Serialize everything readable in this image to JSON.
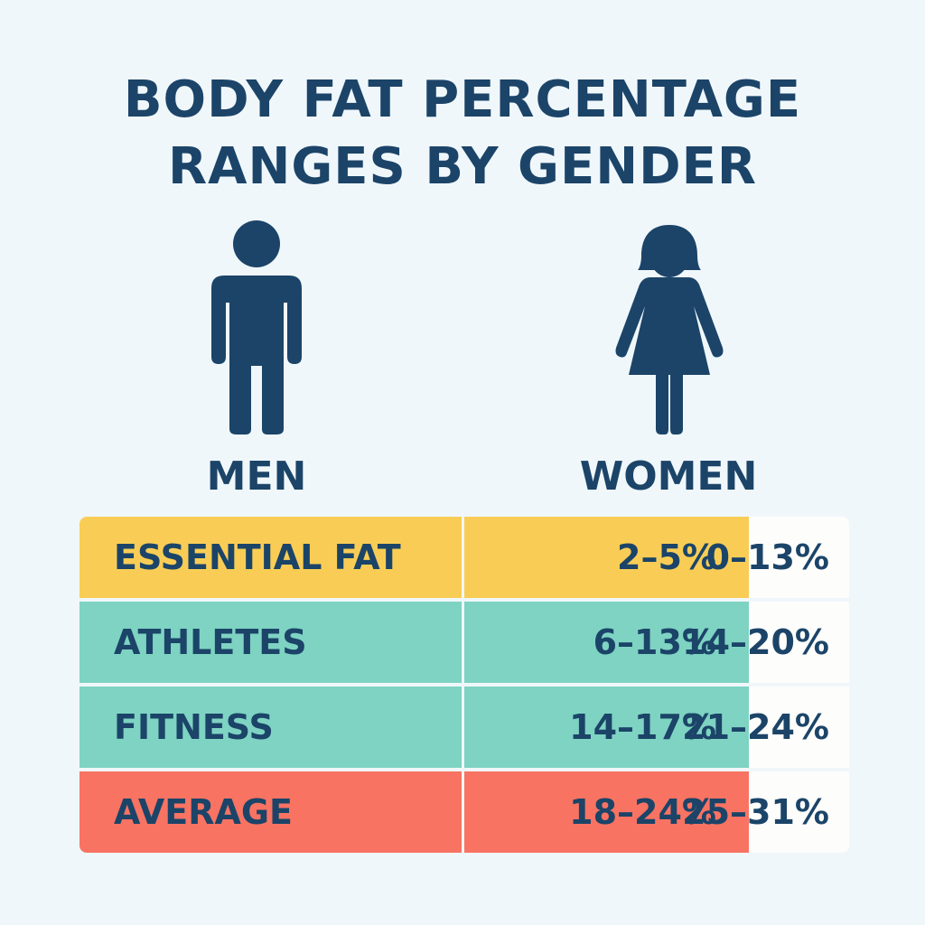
{
  "title": {
    "line1": "BODY FAT PERCENTAGE",
    "line2": "RANGES BY GENDER"
  },
  "icons": {
    "men": "man-icon",
    "women": "woman-icon"
  },
  "labels": {
    "men": "MEN",
    "women": "WOMEN"
  },
  "colors": {
    "text": "#1b4468",
    "background": "#f0f7fb",
    "essential": "#f9cd55",
    "athletes": "#7ed3c2",
    "fitness": "#7ed3c2",
    "average": "#f97362",
    "women_cell": "#fdfdfc"
  },
  "rows": [
    {
      "category": "ESSENTIAL FAT",
      "men": "2–5%",
      "women": "0–13%"
    },
    {
      "category": "ATHLETES",
      "men": "6–13%",
      "women": "14–20%"
    },
    {
      "category": "FITNESS",
      "men": "14–17%",
      "women": "21–24%"
    },
    {
      "category": "AVERAGE",
      "men": "18–24%",
      "women": "25–31%"
    }
  ]
}
